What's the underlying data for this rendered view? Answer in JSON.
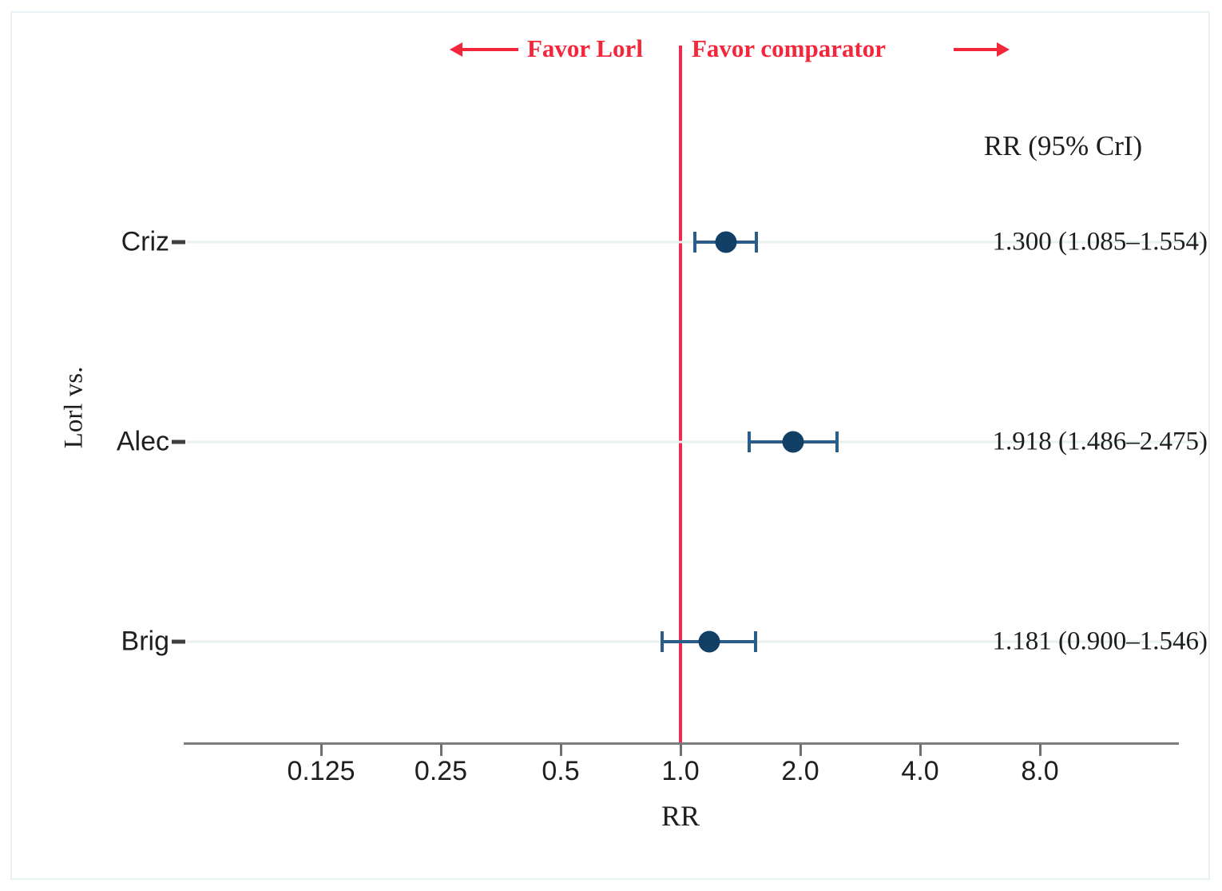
{
  "figure": {
    "top_annotation": {
      "left_label": "Favor Lorl",
      "right_label": "Favor comparator"
    },
    "column_header": "RR (95% CrI)",
    "y_axis_title": "Lorl vs.",
    "x_axis_title": "RR"
  },
  "chart_data": {
    "type": "scatter",
    "subtype": "forest-plot",
    "title": "",
    "xlabel": "RR",
    "ylabel": "Lorl vs.",
    "x_scale": "log",
    "x_ticks": [
      {
        "value": 0.125,
        "label": "0.125"
      },
      {
        "value": 0.25,
        "label": "0.25"
      },
      {
        "value": 0.5,
        "label": "0.5"
      },
      {
        "value": 1.0,
        "label": "1.0"
      },
      {
        "value": 2.0,
        "label": "2.0"
      },
      {
        "value": 4.0,
        "label": "4.0"
      },
      {
        "value": 8.0,
        "label": "8.0"
      }
    ],
    "reference_line_x": 1.0,
    "grid": true,
    "legend_position": "none",
    "rows": [
      {
        "label": "Criz",
        "rr": 1.3,
        "ci_low": 1.085,
        "ci_high": 1.554,
        "value_text": "1.300 (1.085–1.554)"
      },
      {
        "label": "Alec",
        "rr": 1.918,
        "ci_low": 1.486,
        "ci_high": 2.475,
        "value_text": "1.918 (1.486–2.475)"
      },
      {
        "label": "Brig",
        "rr": 1.181,
        "ci_low": 0.9,
        "ci_high": 1.546,
        "value_text": "1.181 (0.900–1.546)"
      }
    ]
  },
  "colors": {
    "annotation_red": "#f2273b",
    "reference_line_red": "#ee2b4c",
    "marker_navy": "#123f66",
    "whisker_blue": "#2b5d8a",
    "gridline": "#e7f2ef",
    "axis_gray": "#7c7c7c",
    "frame_border": "#e9f3f5",
    "text": "#1d1d1d"
  }
}
